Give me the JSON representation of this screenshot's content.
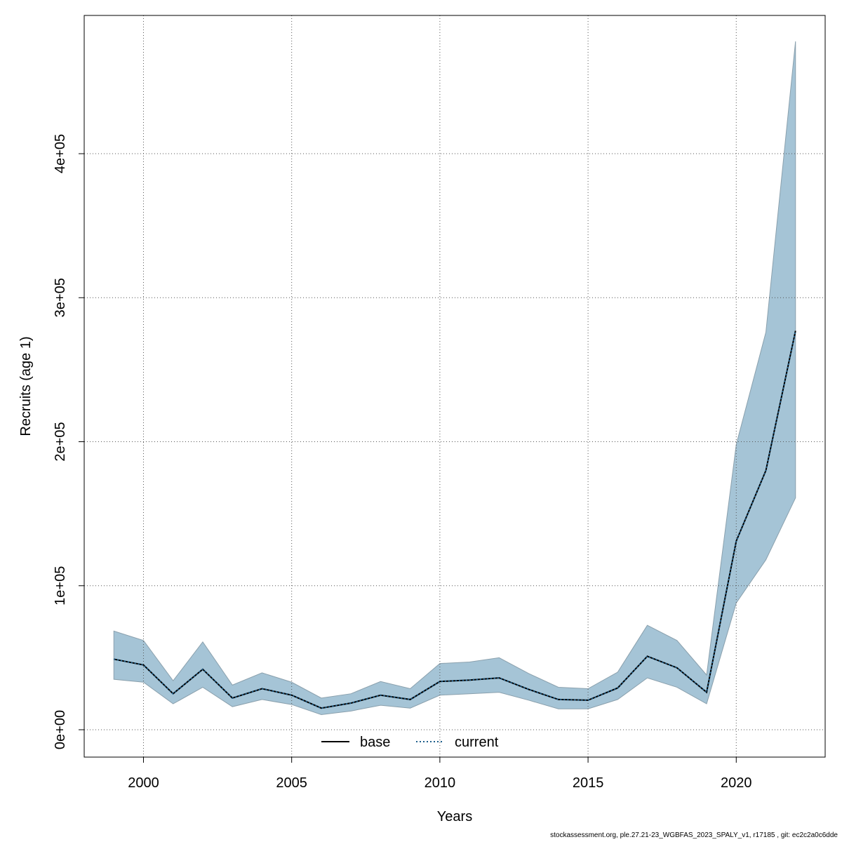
{
  "chart_data": {
    "type": "line",
    "xlabel": "Years",
    "ylabel": "Recruits (age 1)",
    "xlim": [
      1998.0,
      2023.0
    ],
    "ylim": [
      -19000,
      496000
    ],
    "x_ticks": [
      2000,
      2005,
      2010,
      2015,
      2020
    ],
    "y_ticks": [
      0,
      100000,
      200000,
      300000,
      400000
    ],
    "y_tick_labels": [
      "0e+00",
      "1e+05",
      "2e+05",
      "3e+05",
      "4e+05"
    ],
    "grid": true,
    "legend_position": "bottom",
    "x": [
      1999,
      2000,
      2001,
      2002,
      2003,
      2004,
      2005,
      2006,
      2007,
      2008,
      2009,
      2010,
      2011,
      2012,
      2013,
      2014,
      2015,
      2016,
      2017,
      2018,
      2019,
      2020,
      2021,
      2022
    ],
    "series": [
      {
        "name": "base",
        "line_style": "solid",
        "color": "#000000",
        "values": [
          49000,
          45000,
          25000,
          42000,
          22000,
          28500,
          24000,
          15000,
          18500,
          24000,
          21000,
          33500,
          34500,
          36000,
          28000,
          21000,
          20500,
          29000,
          51000,
          43000,
          26000,
          131000,
          180000,
          277000
        ]
      },
      {
        "name": "current",
        "line_style": "dotted",
        "color": "#1f5f8b",
        "values": [
          49000,
          45000,
          25000,
          42000,
          22000,
          28500,
          24000,
          15000,
          18500,
          24000,
          21000,
          33500,
          34500,
          36000,
          28000,
          21000,
          20500,
          29000,
          51000,
          43000,
          26000,
          131000,
          180000,
          277000
        ]
      }
    ],
    "confidence_band": {
      "color": "#a5c4d6",
      "lower": [
        35000,
        33000,
        18000,
        29500,
        16000,
        21000,
        17500,
        10500,
        13000,
        17000,
        15000,
        24000,
        25000,
        26000,
        20500,
        14500,
        14500,
        21000,
        36000,
        29500,
        18000,
        88000,
        118000,
        161000
      ],
      "upper": [
        68500,
        62000,
        34000,
        61000,
        31000,
        39500,
        33000,
        22000,
        25000,
        33500,
        28500,
        46000,
        47000,
        50000,
        39000,
        29500,
        28500,
        40000,
        72500,
        62000,
        38000,
        198000,
        276000,
        478000
      ]
    },
    "legend": [
      {
        "label": "base",
        "line_style": "solid",
        "color": "#000000"
      },
      {
        "label": "current",
        "line_style": "dotted",
        "color": "#1f5f8b"
      }
    ]
  },
  "footer_text": "stockassessment.org, ple.27.21-23_WGBFAS_2023_SPALY_v1, r17185 , git: ec2c2a0c6dde"
}
